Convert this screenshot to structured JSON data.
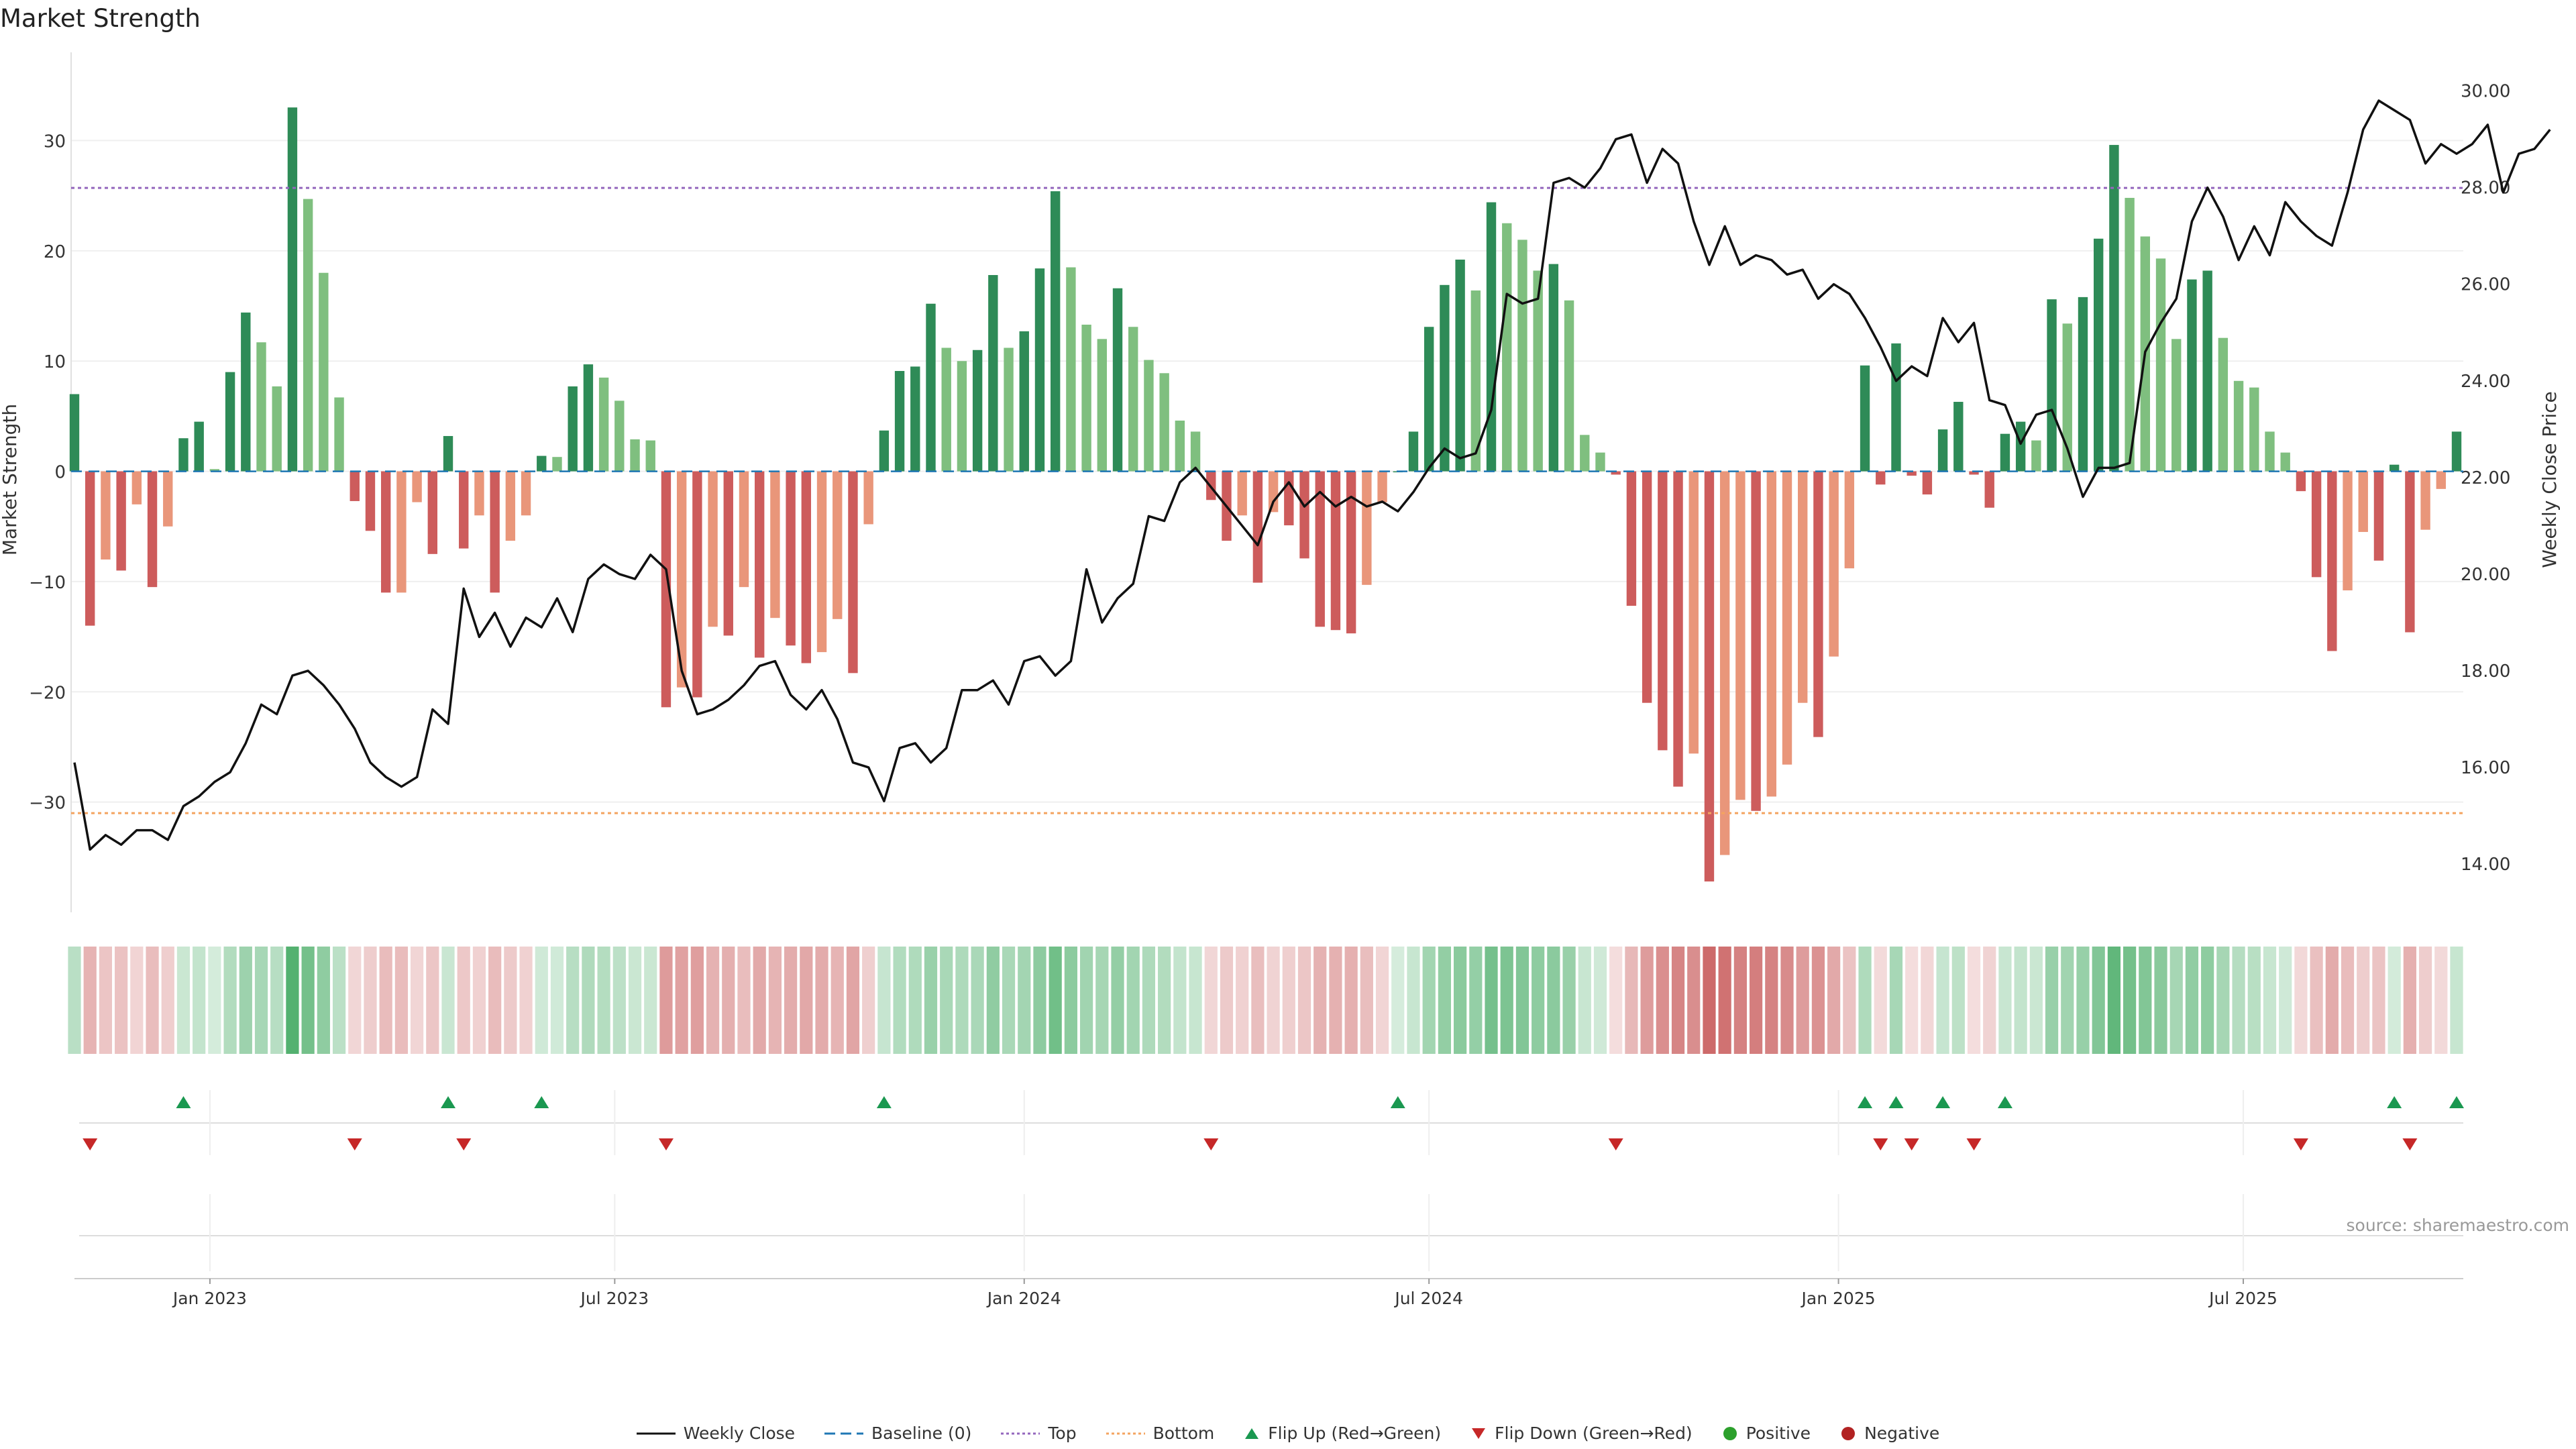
{
  "page": {
    "title": "Market Strength",
    "source": "source: sharemaestro.com"
  },
  "legend": [
    {
      "id": "weekly_close",
      "label": "Weekly Close"
    },
    {
      "id": "baseline",
      "label": "Baseline (0)"
    },
    {
      "id": "top",
      "label": "Top"
    },
    {
      "id": "bottom",
      "label": "Bottom"
    },
    {
      "id": "flip_up",
      "label": "Flip Up (Red→Green)"
    },
    {
      "id": "flip_down",
      "label": "Flip Down (Green→Red)"
    },
    {
      "id": "positive",
      "label": "Positive"
    },
    {
      "id": "negative",
      "label": "Negative"
    }
  ],
  "colors": {
    "green_dark": "#2e8b57",
    "green_light": "#7fbf7f",
    "red_dark": "#cd5c5c",
    "red_light": "#e9967a",
    "line": "#111111",
    "baseline": "#1f77b4",
    "top": "#9467bd",
    "bottom": "#f4a460",
    "flip_up": "#1a9850",
    "flip_down": "#c62828",
    "positive": "#2ca02c",
    "negative": "#b22222"
  },
  "chart_data": {
    "type": "bar",
    "title": "Market Strength",
    "xlabel": "",
    "ylabel": "Market Strength",
    "y2label": "Weekly Close Price",
    "ylim": [
      -40,
      38
    ],
    "y2lim": [
      13.0,
      30.8
    ],
    "yticks": [
      -30,
      -20,
      -10,
      0,
      10,
      20,
      30
    ],
    "y2ticks": [
      14,
      16,
      18,
      20,
      22,
      24,
      26,
      28,
      30
    ],
    "xticks": [
      {
        "label": "Jan 2023",
        "week": 8.7
      },
      {
        "label": "Jul 2023",
        "week": 34.7
      },
      {
        "label": "Jan 2024",
        "week": 61.0
      },
      {
        "label": "Jul 2024",
        "week": 87.0
      },
      {
        "label": "Jan 2025",
        "week": 113.3
      },
      {
        "label": "Jul 2025",
        "week": 139.3
      }
    ],
    "top": 25.7,
    "bottom": -31.0,
    "baseline": 0,
    "strength": [
      7,
      -14,
      -8,
      -9,
      -3,
      -10.5,
      -5,
      3,
      4.5,
      0.2,
      9,
      14.4,
      11.7,
      7.7,
      33,
      24.7,
      18,
      6.7,
      -2.7,
      -5.4,
      -11,
      -11,
      -2.8,
      -7.5,
      3.2,
      -7,
      -4,
      -11,
      -6.3,
      -4,
      1.4,
      1.3,
      7.7,
      9.7,
      8.5,
      6.4,
      2.9,
      2.8,
      -21.4,
      -19.6,
      -20.5,
      -14.1,
      -14.9,
      -10.5,
      -16.9,
      -13.3,
      -15.8,
      -17.4,
      -16.4,
      -13.4,
      -18.3,
      -4.8,
      3.7,
      9.1,
      9.5,
      15.2,
      11.2,
      10,
      11,
      17.8,
      11.2,
      12.7,
      18.4,
      25.4,
      18.5,
      13.3,
      12,
      16.6,
      13.1,
      10.1,
      8.9,
      4.6,
      3.6,
      -2.6,
      -6.3,
      -4,
      -10.1,
      -3.7,
      -4.9,
      -7.9,
      -14.1,
      -14.4,
      -14.7,
      -10.3,
      -2.8,
      0,
      3.6,
      13.1,
      16.9,
      19.2,
      16.4,
      24.4,
      22.5,
      21,
      18.2,
      18.8,
      15.5,
      3.3,
      1.7,
      -0.3,
      -12.2,
      -21,
      -25.3,
      -28.6,
      -25.6,
      -37.2,
      -34.8,
      -29.8,
      -30.8,
      -29.5,
      -26.6,
      -21,
      -24.1,
      -16.8,
      -8.8,
      9.6,
      -1.2,
      11.6,
      -0.4,
      -2.1,
      3.8,
      6.3,
      -0.3,
      -3.3,
      3.4,
      4.5,
      2.8,
      15.6,
      13.4,
      15.8,
      21.1,
      29.6,
      24.8,
      21.3,
      19.3,
      12,
      17.4,
      18.2,
      12.1,
      8.2,
      7.6,
      3.6,
      1.7,
      -1.8,
      -9.6,
      -16.3,
      -10.8,
      -5.5,
      -8.1,
      0.6,
      -14.6,
      -5.3,
      -1.6,
      3.6
    ],
    "weekly_close": [
      16.1,
      14.3,
      14.6,
      14.4,
      14.7,
      14.7,
      14.5,
      15.2,
      15.4,
      15.7,
      15.9,
      16.5,
      17.3,
      17.1,
      17.9,
      18.0,
      17.7,
      17.3,
      16.8,
      16.1,
      15.8,
      15.6,
      15.8,
      17.2,
      16.9,
      19.7,
      18.7,
      19.2,
      18.5,
      19.1,
      18.9,
      19.5,
      18.8,
      19.9,
      20.2,
      20.0,
      19.9,
      20.4,
      20.1,
      18.0,
      17.1,
      17.2,
      17.4,
      17.7,
      18.1,
      18.2,
      17.5,
      17.2,
      17.6,
      17.0,
      16.1,
      16.0,
      15.3,
      16.4,
      16.5,
      16.1,
      16.4,
      17.6,
      17.6,
      17.8,
      17.3,
      18.2,
      18.3,
      17.9,
      18.2,
      20.1,
      19.0,
      19.5,
      19.8,
      21.2,
      21.1,
      21.9,
      22.2,
      21.8,
      21.4,
      21.0,
      20.6,
      21.5,
      21.9,
      21.4,
      21.7,
      21.4,
      21.6,
      21.4,
      21.5,
      21.3,
      21.7,
      22.2,
      22.6,
      22.4,
      22.5,
      23.4,
      25.8,
      25.6,
      25.7,
      28.1,
      28.2,
      28.0,
      28.4,
      29.0,
      29.1,
      28.1,
      28.8,
      28.5,
      27.3,
      26.4,
      27.2,
      26.4,
      26.6,
      26.5,
      26.2,
      26.3,
      25.7,
      26.0,
      25.8,
      25.3,
      24.7,
      24.0,
      24.3,
      24.1,
      25.3,
      24.8,
      25.2,
      23.6,
      23.5,
      22.7,
      23.3,
      23.4,
      22.6,
      21.6,
      22.2,
      22.2,
      22.3,
      24.6,
      25.2,
      25.7,
      27.3,
      28.0,
      27.4,
      26.5,
      27.2,
      26.6,
      27.7,
      27.3,
      27.0,
      26.8,
      27.9,
      29.2,
      29.8,
      29.6,
      29.4,
      28.5,
      28.9,
      28.7,
      28.9,
      29.3,
      27.9,
      28.7,
      28.8,
      29.2
    ]
  }
}
